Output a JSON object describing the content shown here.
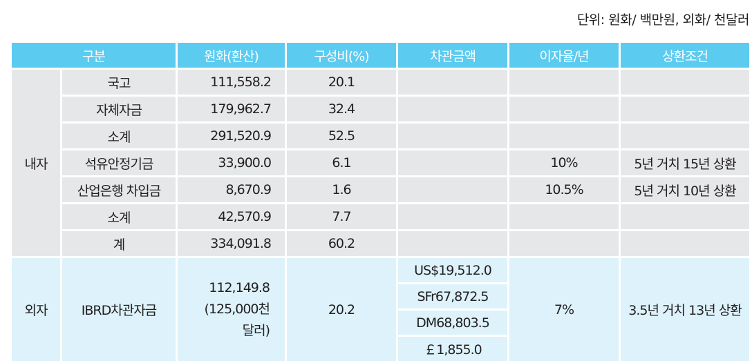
{
  "unit_note": "단위: 원화/ 백만원, 외화/ 천달러",
  "headers": [
    "구분",
    "원화(환산)",
    "구성비(%)",
    "차관금액",
    "이자율/년",
    "상환조건"
  ],
  "domestic": {
    "group": "내자",
    "rows": [
      {
        "name": "국고",
        "won": "111,558.2",
        "ratio": "20.1",
        "loan": "",
        "rate": "",
        "terms": ""
      },
      {
        "name": "자체자금",
        "won": "179,962.7",
        "ratio": "32.4",
        "loan": "",
        "rate": "",
        "terms": ""
      },
      {
        "name": "소계",
        "won": "291,520.9",
        "ratio": "52.5",
        "loan": "",
        "rate": "",
        "terms": ""
      },
      {
        "name": "석유안정기금",
        "won": "33,900.0",
        "ratio": "6.1",
        "loan": "",
        "rate": "10%",
        "terms": "5년 거치 15년 상환"
      },
      {
        "name": "산업은행 차입금",
        "won": "8,670.9",
        "ratio": "1.6",
        "loan": "",
        "rate": "10.5%",
        "terms": "5년 거치 10년 상환"
      },
      {
        "name": "소계",
        "won": "42,570.9",
        "ratio": "7.7",
        "loan": "",
        "rate": "",
        "terms": ""
      },
      {
        "name": "계",
        "won": "334,091.8",
        "ratio": "60.2",
        "loan": "",
        "rate": "",
        "terms": ""
      }
    ]
  },
  "foreign": {
    "group": "외자",
    "name": "IBRD차관자금",
    "won_line1": "112,149.8",
    "won_line2": "(125,000천",
    "won_line3": "달러)",
    "ratio": "20.2",
    "loans": [
      "US$19,512.0",
      "SFr67,872.5",
      "DM68,803.5",
      "￡1,855.0"
    ],
    "rate": "7%",
    "terms": "3.5년 거치 13년 상환"
  }
}
